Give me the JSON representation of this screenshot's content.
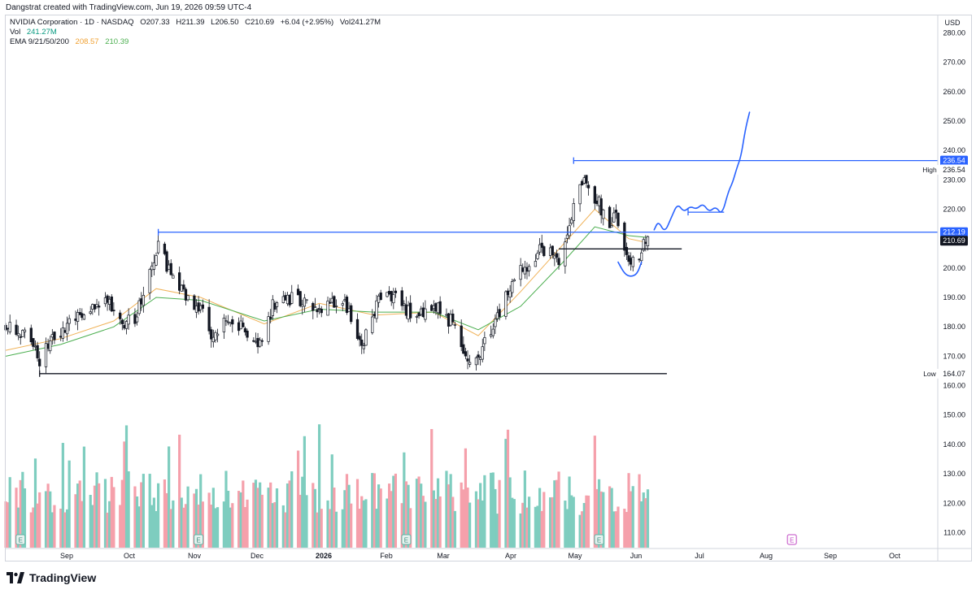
{
  "header": {
    "caption": "Dangstrat created with TradingView.com, Jun 19, 2026 09:59 UTC-4"
  },
  "legend": {
    "symbol_line": "NVIDIA Corporation · 1D · NASDAQ",
    "open": "O207.33",
    "high": "H211.39",
    "low": "L206.50",
    "close": "C210.69",
    "change": "+6.04 (+2.95%)",
    "volume": "Vol241.27M",
    "vol_label": "Vol",
    "vol_value": "241.27M",
    "ema_label": "EMA 9/21/50/200",
    "ema_value_1": "208.57",
    "ema_value_2": "210.39"
  },
  "price_axis": {
    "currency": "USD",
    "ticks": [
      "280.00",
      "270.00",
      "260.00",
      "250.00",
      "240.00",
      "230.00",
      "220.00",
      "200.00",
      "190.00",
      "180.00",
      "170.00",
      "160.00",
      "150.00",
      "140.00",
      "130.00",
      "120.00",
      "110.00"
    ],
    "badges": [
      {
        "text": "236.54",
        "value": 236.54,
        "bg": "#2962ff",
        "fg": "#ffffff"
      },
      {
        "text": "236.54",
        "value": 233.4,
        "bg": "#ffffff",
        "fg": "#131722"
      },
      {
        "text": "212.19",
        "value": 212.19,
        "bg": "#2962ff",
        "fg": "#ffffff"
      },
      {
        "text": "210.69",
        "value": 209.3,
        "bg": "#131722",
        "fg": "#ffffff"
      },
      {
        "text": "164.07",
        "value": 164.07,
        "bg": "#ffffff",
        "fg": "#131722"
      }
    ],
    "high_label": "High",
    "low_label": "Low"
  },
  "time_axis": {
    "labels": [
      {
        "text": "Sep",
        "bold": false
      },
      {
        "text": "Oct",
        "bold": false
      },
      {
        "text": "Nov",
        "bold": false
      },
      {
        "text": "Dec",
        "bold": false
      },
      {
        "text": "2026",
        "bold": true
      },
      {
        "text": "Feb",
        "bold": false
      },
      {
        "text": "Mar",
        "bold": false
      },
      {
        "text": "Apr",
        "bold": false
      },
      {
        "text": "May",
        "bold": false
      },
      {
        "text": "Jun",
        "bold": false
      },
      {
        "text": "Jul",
        "bold": false
      },
      {
        "text": "Aug",
        "bold": false
      },
      {
        "text": "Sep",
        "bold": false
      },
      {
        "text": "Oct",
        "bold": false
      }
    ]
  },
  "footer": {
    "brand": "TradingView"
  },
  "colors": {
    "up": "#089981",
    "down": "#f23645",
    "vol_up": "#7ecdbf",
    "vol_down": "#f5a0ab",
    "drawing": "#2962ff",
    "ema_fast": "#f0b35a",
    "ema_slow": "#4caf50",
    "level": "#131722"
  },
  "chart_data": {
    "type": "candlestick",
    "title": "NVIDIA Corporation · 1D · NASDAQ",
    "ylabel": "USD",
    "ylim": [
      105,
      285
    ],
    "x_range": [
      "2025-08-20",
      "2026-10-25"
    ],
    "last_close": 210.69,
    "session_high": 236.54,
    "session_low": 164.07,
    "resistance_level": 212.19,
    "support_level": 206.5,
    "earnings_dates": [
      "2025-08-27",
      "2025-11-19",
      "2026-02-25",
      "2026-05-27",
      "2026-08-26"
    ],
    "waypoints": [
      {
        "date": "2025-08-20",
        "price": 180
      },
      {
        "date": "2025-09-02",
        "price": 175
      },
      {
        "date": "2025-09-05",
        "price": 169
      },
      {
        "date": "2025-09-12",
        "price": 177
      },
      {
        "date": "2025-09-22",
        "price": 182
      },
      {
        "date": "2025-10-01",
        "price": 186
      },
      {
        "date": "2025-10-08",
        "price": 189
      },
      {
        "date": "2025-10-14",
        "price": 181
      },
      {
        "date": "2025-10-20",
        "price": 183
      },
      {
        "date": "2025-10-28",
        "price": 200
      },
      {
        "date": "2025-10-31",
        "price": 208
      },
      {
        "date": "2025-11-06",
        "price": 197
      },
      {
        "date": "2025-11-13",
        "price": 191
      },
      {
        "date": "2025-11-20",
        "price": 186
      },
      {
        "date": "2025-11-25",
        "price": 177
      },
      {
        "date": "2025-12-05",
        "price": 183
      },
      {
        "date": "2025-12-12",
        "price": 177
      },
      {
        "date": "2025-12-17",
        "price": 172
      },
      {
        "date": "2025-12-24",
        "price": 187
      },
      {
        "date": "2026-01-05",
        "price": 190
      },
      {
        "date": "2026-01-15",
        "price": 186
      },
      {
        "date": "2026-01-26",
        "price": 190
      },
      {
        "date": "2026-02-04",
        "price": 174
      },
      {
        "date": "2026-02-12",
        "price": 189
      },
      {
        "date": "2026-02-20",
        "price": 190
      },
      {
        "date": "2026-02-27",
        "price": 184
      },
      {
        "date": "2026-03-05",
        "price": 184
      },
      {
        "date": "2026-03-13",
        "price": 186
      },
      {
        "date": "2026-03-20",
        "price": 180
      },
      {
        "date": "2026-03-27",
        "price": 167
      },
      {
        "date": "2026-04-01",
        "price": 171
      },
      {
        "date": "2026-04-08",
        "price": 182
      },
      {
        "date": "2026-04-17",
        "price": 196
      },
      {
        "date": "2026-04-28",
        "price": 205
      },
      {
        "date": "2026-05-04",
        "price": 208
      },
      {
        "date": "2026-05-08",
        "price": 199
      },
      {
        "date": "2026-05-15",
        "price": 221
      },
      {
        "date": "2026-05-19",
        "price": 230
      },
      {
        "date": "2026-05-27",
        "price": 222
      },
      {
        "date": "2026-06-01",
        "price": 213
      },
      {
        "date": "2026-06-04",
        "price": 218
      },
      {
        "date": "2026-06-10",
        "price": 203
      },
      {
        "date": "2026-06-15",
        "price": 204
      },
      {
        "date": "2026-06-19",
        "price": 210.69
      }
    ],
    "ema_fast": [
      {
        "date": "2025-08-20",
        "price": 172
      },
      {
        "date": "2025-09-15",
        "price": 176
      },
      {
        "date": "2025-10-10",
        "price": 182
      },
      {
        "date": "2025-10-30",
        "price": 193
      },
      {
        "date": "2025-11-20",
        "price": 190
      },
      {
        "date": "2025-12-20",
        "price": 181
      },
      {
        "date": "2026-01-15",
        "price": 188
      },
      {
        "date": "2026-02-10",
        "price": 184
      },
      {
        "date": "2026-03-10",
        "price": 185
      },
      {
        "date": "2026-03-31",
        "price": 177
      },
      {
        "date": "2026-04-20",
        "price": 192
      },
      {
        "date": "2026-05-10",
        "price": 208
      },
      {
        "date": "2026-05-25",
        "price": 220
      },
      {
        "date": "2026-06-10",
        "price": 210
      },
      {
        "date": "2026-06-19",
        "price": 208.57
      }
    ],
    "ema_slow": [
      {
        "date": "2025-08-20",
        "price": 170
      },
      {
        "date": "2025-09-15",
        "price": 174
      },
      {
        "date": "2025-10-10",
        "price": 180
      },
      {
        "date": "2025-10-30",
        "price": 190
      },
      {
        "date": "2025-11-20",
        "price": 189
      },
      {
        "date": "2025-12-20",
        "price": 182
      },
      {
        "date": "2026-01-15",
        "price": 186
      },
      {
        "date": "2026-02-10",
        "price": 185
      },
      {
        "date": "2026-03-10",
        "price": 185
      },
      {
        "date": "2026-03-31",
        "price": 179
      },
      {
        "date": "2026-04-20",
        "price": 187
      },
      {
        "date": "2026-05-10",
        "price": 202
      },
      {
        "date": "2026-05-25",
        "price": 214
      },
      {
        "date": "2026-06-10",
        "price": 211
      },
      {
        "date": "2026-06-19",
        "price": 210.39
      }
    ],
    "levels": [
      {
        "name": "resistance-line",
        "price": 212.19,
        "from": "2025-10-31",
        "to": "2026-10-25",
        "color": "#2962ff"
      },
      {
        "name": "high-line",
        "price": 236.54,
        "from": "2026-05-15",
        "to": "2026-10-25",
        "color": "#2962ff"
      },
      {
        "name": "support-line",
        "price": 206.5,
        "from": "2026-05-08",
        "to": "2026-07-05",
        "color": "#131722"
      },
      {
        "name": "low-line",
        "price": 164.07,
        "from": "2025-09-05",
        "to": "2026-06-28",
        "color": "#131722"
      },
      {
        "name": "target-consolidation-line",
        "price": 219,
        "from": "2026-07-08",
        "to": "2026-07-25",
        "color": "#2962ff"
      }
    ],
    "projection": [
      {
        "date": "2026-06-22",
        "price": 213
      },
      {
        "date": "2026-06-24",
        "price": 216
      },
      {
        "date": "2026-06-27",
        "price": 212
      },
      {
        "date": "2026-06-30",
        "price": 217
      },
      {
        "date": "2026-07-03",
        "price": 222
      },
      {
        "date": "2026-07-06",
        "price": 219
      },
      {
        "date": "2026-07-09",
        "price": 221
      },
      {
        "date": "2026-07-12",
        "price": 220
      },
      {
        "date": "2026-07-15",
        "price": 222
      },
      {
        "date": "2026-07-18",
        "price": 219
      },
      {
        "date": "2026-07-21",
        "price": 221
      },
      {
        "date": "2026-07-24",
        "price": 218
      },
      {
        "date": "2026-07-27",
        "price": 226
      },
      {
        "date": "2026-07-29",
        "price": 229
      },
      {
        "date": "2026-07-31",
        "price": 234
      },
      {
        "date": "2026-08-02",
        "price": 238
      },
      {
        "date": "2026-08-04",
        "price": 247
      },
      {
        "date": "2026-08-06",
        "price": 253
      }
    ],
    "cup": [
      {
        "date": "2026-06-05",
        "price": 202
      },
      {
        "date": "2026-06-08",
        "price": 198
      },
      {
        "date": "2026-06-11",
        "price": 197
      },
      {
        "date": "2026-06-14",
        "price": 198
      },
      {
        "date": "2026-06-16",
        "price": 202
      }
    ]
  }
}
